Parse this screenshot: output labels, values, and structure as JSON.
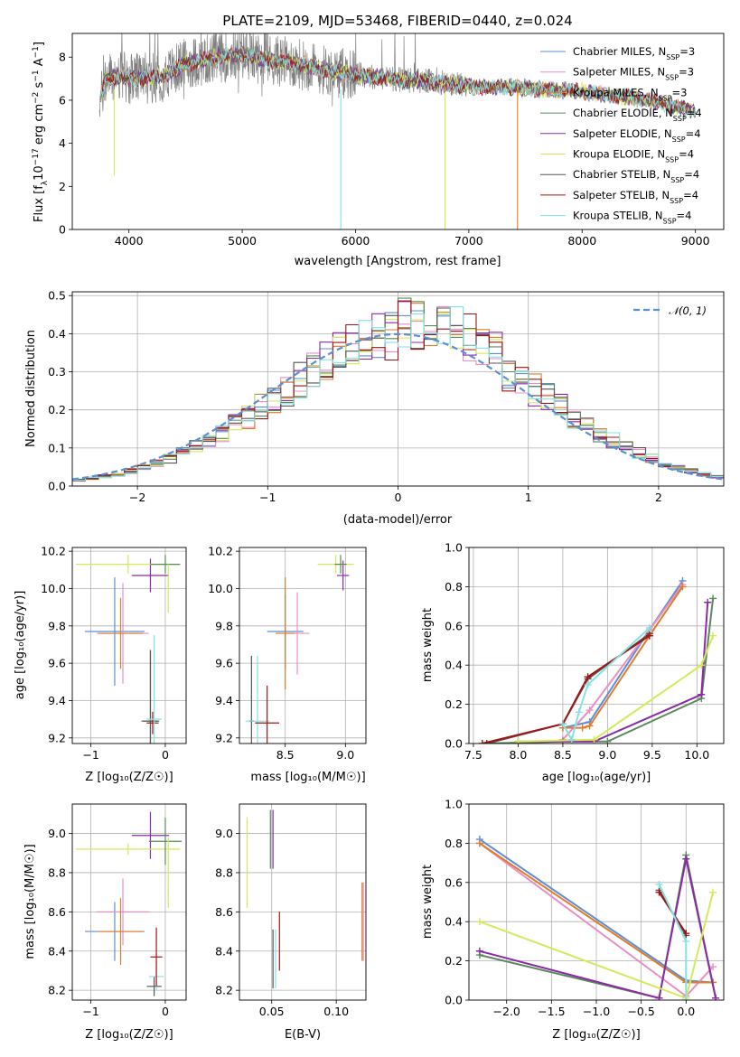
{
  "chart_data": [
    {
      "id": "spectrum",
      "type": "line",
      "title": "PLATE=2109, MJD=53468, FIBERID=0440, z=0.024",
      "xlabel": "wavelength [Angstrom, rest frame]",
      "ylabel": "Flux [f_λ10^-17 erg cm^-2 s^-1 A^-1]",
      "xlim": [
        3500,
        9250
      ],
      "ylim": [
        0,
        9.1
      ],
      "xticks": [
        4000,
        5000,
        6000,
        7000,
        8000,
        9000
      ],
      "yticks": [
        0,
        2,
        4,
        6,
        8
      ],
      "legend_position": "top-right",
      "data_color": "#808080",
      "continuum": {
        "x": [
          3750,
          3800,
          3900,
          4000,
          4100,
          4300,
          4500,
          4800,
          5000,
          5200,
          5500,
          5800,
          6000,
          6300,
          6600,
          6900,
          7100,
          7400,
          7700,
          8000,
          8300,
          8600,
          8900,
          9000
        ],
        "y": [
          6.1,
          7.0,
          7.1,
          7.0,
          7.0,
          7.1,
          7.7,
          8.0,
          8.1,
          7.9,
          7.7,
          7.3,
          7.2,
          7.0,
          6.9,
          6.7,
          6.6,
          6.6,
          6.5,
          6.4,
          6.2,
          6.0,
          5.6,
          5.5
        ]
      },
      "series": [
        {
          "name": "Chabrier MILES, N_SSP=3",
          "color": "#5b8fd6"
        },
        {
          "name": "Salpeter MILES, N_SSP=3",
          "color": "#e98fc4"
        },
        {
          "name": "Kroupa MILES, N_SSP=3",
          "color": "#e07c2b"
        },
        {
          "name": "Chabrier ELODIE, N_SSP=4",
          "color": "#5a8a5a"
        },
        {
          "name": "Salpeter ELODIE, N_SSP=4",
          "color": "#8b2aa8"
        },
        {
          "name": "Kroupa ELODIE, N_SSP=4",
          "color": "#d4ea5a"
        },
        {
          "name": "Chabrier STELIB, N_SSP=4",
          "color": "#555555"
        },
        {
          "name": "Salpeter STELIB, N_SSP=4",
          "color": "#a01515"
        },
        {
          "name": "Kroupa STELIB, N_SSP=4",
          "color": "#86e1e1"
        }
      ]
    },
    {
      "id": "residuals",
      "type": "line",
      "xlabel": "(data-model)/error",
      "ylabel": "Normed distribution",
      "xlim": [
        -2.5,
        2.5
      ],
      "ylim": [
        0,
        0.51
      ],
      "xticks": [
        -2,
        -1,
        0,
        1,
        2
      ],
      "xtick_labels": [
        "−2",
        "−1",
        "0",
        "1",
        "2"
      ],
      "yticks": [
        0.0,
        0.1,
        0.2,
        0.3,
        0.4,
        0.5
      ],
      "ytick_labels": [
        "0.0",
        "0.1",
        "0.2",
        "0.3",
        "0.4",
        "0.5"
      ],
      "legend": "𝒩(0, 1)",
      "legend_position": "top-right",
      "gaussian_color": "#5b8fd6",
      "grid": true
    },
    {
      "id": "age_vs_Z",
      "type": "scatter",
      "xlabel": "Z [log₁₀(Z/Z☉)]",
      "ylabel": "age  [log₁₀(age/yr)]",
      "xlim": [
        -1.25,
        0.28
      ],
      "ylim": [
        9.17,
        10.22
      ],
      "xticks": [
        -1,
        0
      ],
      "xtick_labels": [
        "−1",
        "0"
      ],
      "yticks": [
        9.2,
        9.4,
        9.6,
        9.8,
        10.0,
        10.2
      ],
      "ytick_labels": [
        "9.2",
        "9.4",
        "9.6",
        "9.8",
        "10.0",
        "10.2"
      ],
      "grid": true,
      "points": [
        {
          "x": -0.68,
          "y": 9.77,
          "xerr": 0.4,
          "yerr": 0.29,
          "color": "#5b8fd6"
        },
        {
          "x": -0.57,
          "y": 9.76,
          "xerr": 0.35,
          "yerr": 0.27,
          "color": "#e98fc4"
        },
        {
          "x": -0.6,
          "y": 9.76,
          "xerr": 0.3,
          "yerr": 0.19,
          "color": "#e07c2b"
        },
        {
          "x": -0.2,
          "y": 9.29,
          "xerr": 0.1,
          "yerr": 0.38,
          "color": "#5a8a5a"
        },
        {
          "x": -0.2,
          "y": 9.29,
          "xerr": 0.12,
          "yerr": 0.38,
          "color": "#555555"
        },
        {
          "x": -0.17,
          "y": 9.28,
          "xerr": 0.08,
          "yerr": 0.06,
          "color": "#a01515"
        },
        {
          "x": -0.15,
          "y": 9.3,
          "xerr": 0.1,
          "yerr": 0.45,
          "color": "#86e1e1"
        },
        {
          "x": -0.2,
          "y": 10.07,
          "xerr": 0.25,
          "yerr": 0.09,
          "color": "#8b2aa8"
        },
        {
          "x": -0.5,
          "y": 10.13,
          "xerr": 0.7,
          "yerr": 0.05,
          "color": "#d4ea5a"
        },
        {
          "x": 0.0,
          "y": 10.13,
          "xerr": 0.2,
          "yerr": 0.05,
          "color": "#5a8a5a"
        },
        {
          "x": 0.04,
          "y": 10.0,
          "xerr": 0.02,
          "yerr": 0.13,
          "color": "#d4ea5a"
        }
      ]
    },
    {
      "id": "age_vs_mass",
      "type": "scatter",
      "xlabel": "mass [log₁₀(M/M☉)]",
      "xlim": [
        8.12,
        9.17
      ],
      "ylim": [
        9.17,
        10.22
      ],
      "xticks": [
        8.5,
        9.0
      ],
      "xtick_labels": [
        "8.5",
        "9.0"
      ],
      "yticks": [
        9.2,
        9.4,
        9.6,
        9.8,
        10.0,
        10.2
      ],
      "ytick_labels": [
        "9.2",
        "9.4",
        "9.6",
        "9.8",
        "10.0",
        "10.2"
      ],
      "grid": true,
      "points": [
        {
          "x": 8.5,
          "y": 9.77,
          "xerr": 0.15,
          "yerr": 0.2,
          "color": "#5b8fd6"
        },
        {
          "x": 8.6,
          "y": 9.76,
          "xerr": 0.1,
          "yerr": 0.22,
          "color": "#e98fc4"
        },
        {
          "x": 8.5,
          "y": 9.76,
          "xerr": 0.08,
          "yerr": 0.3,
          "color": "#e07c2b"
        },
        {
          "x": 8.22,
          "y": 9.29,
          "xerr": 0.02,
          "yerr": 0.35,
          "color": "#555555"
        },
        {
          "x": 8.27,
          "y": 9.29,
          "xerr": 0.1,
          "yerr": 0.35,
          "color": "#86e1e1"
        },
        {
          "x": 8.35,
          "y": 9.28,
          "xerr": 0.1,
          "yerr": 0.2,
          "color": "#a01515"
        },
        {
          "x": 8.98,
          "y": 10.07,
          "xerr": 0.05,
          "yerr": 0.08,
          "color": "#8b2aa8"
        },
        {
          "x": 8.92,
          "y": 10.13,
          "xerr": 0.15,
          "yerr": 0.05,
          "color": "#d4ea5a"
        },
        {
          "x": 8.96,
          "y": 10.13,
          "xerr": 0.05,
          "yerr": 0.05,
          "color": "#5a8a5a"
        }
      ]
    },
    {
      "id": "mass_weight_vs_age",
      "type": "line",
      "xlabel": "age  [log₁₀(age/yr)]",
      "ylabel": "mass weight",
      "xlim": [
        7.45,
        10.3
      ],
      "ylim": [
        0,
        1
      ],
      "xticks": [
        7.5,
        8.0,
        8.5,
        9.0,
        9.5,
        10.0
      ],
      "xtick_labels": [
        "7.5",
        "8.0",
        "8.5",
        "9.0",
        "9.5",
        "10.0"
      ],
      "yticks": [
        0.0,
        0.2,
        0.4,
        0.6,
        0.8,
        1.0
      ],
      "ytick_labels": [
        "0.0",
        "0.2",
        "0.4",
        "0.6",
        "0.8",
        "1.0"
      ],
      "grid": true,
      "series": [
        {
          "color": "#5b8fd6",
          "x": [
            8.5,
            8.8,
            9.47,
            9.84
          ],
          "y": [
            0.08,
            0.11,
            0.58,
            0.83
          ]
        },
        {
          "color": "#e98fc4",
          "x": [
            8.5,
            8.8,
            9.47,
            9.84
          ],
          "y": [
            0.02,
            0.17,
            0.58,
            0.81
          ]
        },
        {
          "color": "#e07c2b",
          "x": [
            8.5,
            8.72,
            8.8,
            9.47,
            9.84
          ],
          "y": [
            0.08,
            0.08,
            0.09,
            0.55,
            0.8
          ]
        },
        {
          "color": "#5a8a5a",
          "x": [
            7.65,
            8.5,
            9.0,
            10.05,
            10.18
          ],
          "y": [
            0.0,
            0.01,
            0.01,
            0.23,
            0.74
          ]
        },
        {
          "color": "#8b2aa8",
          "x": [
            8.0,
            8.85,
            10.05,
            10.12
          ],
          "y": [
            0.01,
            0.01,
            0.25,
            0.72
          ]
        },
        {
          "color": "#d4ea5a",
          "x": [
            8.0,
            8.85,
            10.05,
            10.18
          ],
          "y": [
            0.01,
            0.02,
            0.4,
            0.55
          ]
        },
        {
          "color": "#555555",
          "x": [
            7.65,
            8.5,
            8.78,
            9.47
          ],
          "y": [
            0.0,
            0.1,
            0.33,
            0.56
          ]
        },
        {
          "color": "#a01515",
          "x": [
            7.6,
            8.5,
            8.78,
            9.47
          ],
          "y": [
            0.0,
            0.1,
            0.34,
            0.55
          ]
        },
        {
          "color": "#86e1e1",
          "x": [
            8.5,
            8.6,
            8.68,
            8.78,
            9.47
          ],
          "y": [
            0.1,
            0.02,
            0.16,
            0.3,
            0.59
          ]
        }
      ]
    },
    {
      "id": "mass_vs_Z",
      "type": "scatter",
      "xlabel": "Z [log₁₀(Z/Z☉)]",
      "ylabel": "mass [log₁₀(M/M☉)]",
      "xlim": [
        -1.25,
        0.28
      ],
      "ylim": [
        8.15,
        9.15
      ],
      "xticks": [
        -1,
        0
      ],
      "xtick_labels": [
        "−1",
        "0"
      ],
      "yticks": [
        8.2,
        8.4,
        8.6,
        8.8,
        9.0
      ],
      "ytick_labels": [
        "8.2",
        "8.4",
        "8.6",
        "8.8",
        "9.0"
      ],
      "grid": true,
      "points": [
        {
          "x": -0.68,
          "y": 8.5,
          "xerr": 0.4,
          "yerr": 0.15,
          "color": "#5b8fd6"
        },
        {
          "x": -0.57,
          "y": 8.6,
          "xerr": 0.35,
          "yerr": 0.17,
          "color": "#e98fc4"
        },
        {
          "x": -0.6,
          "y": 8.5,
          "xerr": 0.3,
          "yerr": 0.17,
          "color": "#e07c2b"
        },
        {
          "x": -0.15,
          "y": 8.22,
          "xerr": 0.1,
          "yerr": 0.05,
          "color": "#555555"
        },
        {
          "x": -0.12,
          "y": 8.27,
          "xerr": 0.1,
          "yerr": 0.07,
          "color": "#86e1e1"
        },
        {
          "x": -0.12,
          "y": 8.37,
          "xerr": 0.08,
          "yerr": 0.15,
          "color": "#a01515"
        },
        {
          "x": -0.2,
          "y": 8.99,
          "xerr": 0.25,
          "yerr": 0.12,
          "color": "#8b2aa8"
        },
        {
          "x": -0.5,
          "y": 8.92,
          "xerr": 0.7,
          "yerr": 0.03,
          "color": "#d4ea5a"
        },
        {
          "x": 0.0,
          "y": 8.96,
          "xerr": 0.22,
          "yerr": 0.12,
          "color": "#5a8a5a"
        },
        {
          "x": 0.04,
          "y": 8.8,
          "xerr": 0.02,
          "yerr": 0.18,
          "color": "#d4ea5a"
        }
      ]
    },
    {
      "id": "mass_vs_ebv",
      "type": "scatter",
      "xlabel": "E(B-V)",
      "xlim": [
        0.025,
        0.123
      ],
      "ylim": [
        8.15,
        9.15
      ],
      "xticks": [
        0.05,
        0.1
      ],
      "xtick_labels": [
        "0.05",
        "0.10"
      ],
      "yticks": [
        8.2,
        8.4,
        8.6,
        8.8,
        9.0
      ],
      "ytick_labels": [
        "8.2",
        "8.4",
        "8.6",
        "8.8",
        "9.0"
      ],
      "grid": true,
      "points": [
        {
          "x": 0.031,
          "y": 8.85,
          "xerr": 0,
          "yerr": 0.23,
          "color": "#d4ea5a"
        },
        {
          "x": 0.049,
          "y": 8.97,
          "xerr": 0,
          "yerr": 0.15,
          "color": "#5a8a5a"
        },
        {
          "x": 0.051,
          "y": 8.97,
          "xerr": 0,
          "yerr": 0.15,
          "color": "#8b2aa8"
        },
        {
          "x": 0.051,
          "y": 8.36,
          "xerr": 0,
          "yerr": 0.15,
          "color": "#555555"
        },
        {
          "x": 0.053,
          "y": 8.36,
          "xerr": 0,
          "yerr": 0.15,
          "color": "#86e1e1"
        },
        {
          "x": 0.056,
          "y": 8.45,
          "xerr": 0,
          "yerr": 0.15,
          "color": "#a01515"
        },
        {
          "x": 0.12,
          "y": 8.55,
          "xerr": 0,
          "yerr": 0.2,
          "color": "#e07c2b"
        },
        {
          "x": 0.121,
          "y": 8.55,
          "xerr": 0,
          "yerr": 0.2,
          "color": "#e98fc4"
        }
      ]
    },
    {
      "id": "mass_weight_vs_Z",
      "type": "line",
      "xlabel": "Z [log₁₀(Z/Z☉)]",
      "ylabel": "mass weight",
      "xlim": [
        -2.42,
        0.42
      ],
      "ylim": [
        0,
        1
      ],
      "xticks": [
        -2.0,
        -1.5,
        -1.0,
        -0.5,
        0.0
      ],
      "xtick_labels": [
        "−2.0",
        "−1.5",
        "−1.0",
        "−0.5",
        "0.0"
      ],
      "yticks": [
        0.0,
        0.2,
        0.4,
        0.6,
        0.8,
        1.0
      ],
      "ytick_labels": [
        "0.0",
        "0.2",
        "0.4",
        "0.6",
        "0.8",
        "1.0"
      ],
      "grid": true,
      "series": [
        {
          "color": "#5b8fd6",
          "x": [
            -2.3,
            0.0,
            0.3
          ],
          "y": [
            0.82,
            0.1,
            0.09
          ]
        },
        {
          "color": "#e98fc4",
          "x": [
            -2.3,
            0.0,
            0.3
          ],
          "y": [
            0.8,
            0.02,
            0.17
          ]
        },
        {
          "color": "#e07c2b",
          "x": [
            -2.3,
            0.0,
            0.3
          ],
          "y": [
            0.8,
            0.09,
            0.09
          ]
        },
        {
          "color": "#5a8a5a",
          "x": [
            -2.3,
            -0.3,
            0.0,
            0.33
          ],
          "y": [
            0.23,
            0.01,
            0.74,
            0.01
          ]
        },
        {
          "color": "#8b2aa8",
          "x": [
            -2.3,
            -0.3,
            0.0,
            0.33
          ],
          "y": [
            0.25,
            0.01,
            0.72,
            0.01
          ]
        },
        {
          "color": "#d4ea5a",
          "x": [
            -2.3,
            0.0,
            0.3
          ],
          "y": [
            0.4,
            0.01,
            0.55
          ]
        },
        {
          "color": "#555555",
          "x": [
            -0.3,
            0.0
          ],
          "y": [
            0.56,
            0.33
          ]
        },
        {
          "color": "#a01515",
          "x": [
            -0.3,
            0.0
          ],
          "y": [
            0.55,
            0.34
          ]
        },
        {
          "color": "#86e1e1",
          "x": [
            -0.3,
            0.0,
            0.0
          ],
          "y": [
            0.59,
            0.3,
            0.0
          ]
        }
      ]
    }
  ]
}
